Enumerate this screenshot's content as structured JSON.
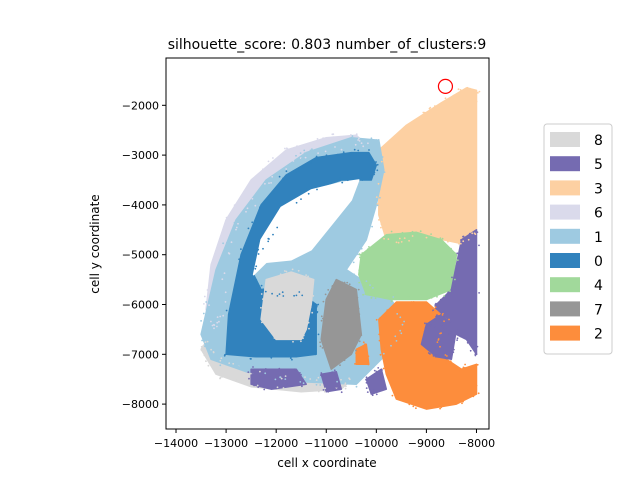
{
  "chart_data": {
    "type": "scatter",
    "title": "silhouette_score: 0.803 number_of_clusters:9",
    "xlabel": "cell x coordinate",
    "ylabel": "cell y coordinate",
    "xlim": [
      -14200,
      -7750
    ],
    "ylim": [
      -8500,
      -1050
    ],
    "x_ticks": [
      -14000,
      -13000,
      -12000,
      -11000,
      -10000,
      -9000,
      -8000
    ],
    "x_tick_labels": [
      "−14000",
      "−13000",
      "−12000",
      "−11000",
      "−10000",
      "−9000",
      "−8000"
    ],
    "y_ticks": [
      -8000,
      -7000,
      -6000,
      -5000,
      -4000,
      -3000,
      -2000
    ],
    "y_tick_labels": [
      "−8000",
      "−7000",
      "−6000",
      "−5000",
      "−4000",
      "−3000",
      "−2000"
    ],
    "grid": false,
    "legend_position": "right",
    "legend": [
      {
        "label": "8",
        "color": "#d9d9d9"
      },
      {
        "label": "5",
        "color": "#756bb1"
      },
      {
        "label": "3",
        "color": "#fdd0a2"
      },
      {
        "label": "6",
        "color": "#dadaeb"
      },
      {
        "label": "1",
        "color": "#9ecae1"
      },
      {
        "label": "0",
        "color": "#3182bd"
      },
      {
        "label": "4",
        "color": "#a1d99b"
      },
      {
        "label": "7",
        "color": "#969696"
      },
      {
        "label": "2",
        "color": "#fd8d3c"
      }
    ],
    "highlight_marker": {
      "x": -8620,
      "y": -1620,
      "color": "#ff0000"
    },
    "regions": [
      {
        "cluster": "8",
        "color": "#d9d9d9",
        "points": [
          [
            -13500,
            -6900
          ],
          [
            -13200,
            -7400
          ],
          [
            -12500,
            -7650
          ],
          [
            -11500,
            -7750
          ],
          [
            -10700,
            -7700
          ],
          [
            -10500,
            -7500
          ],
          [
            -11400,
            -7450
          ],
          [
            -12400,
            -7400
          ],
          [
            -13000,
            -7200
          ],
          [
            -13400,
            -6750
          ]
        ]
      },
      {
        "cluster": "6",
        "color": "#dadaeb",
        "points": [
          [
            -13400,
            -6100
          ],
          [
            -13300,
            -5200
          ],
          [
            -13000,
            -4300
          ],
          [
            -12500,
            -3500
          ],
          [
            -11800,
            -2900
          ],
          [
            -11000,
            -2650
          ],
          [
            -10400,
            -2600
          ],
          [
            -10200,
            -2800
          ],
          [
            -10900,
            -2850
          ],
          [
            -11700,
            -3150
          ],
          [
            -12300,
            -3700
          ],
          [
            -12800,
            -4500
          ],
          [
            -13000,
            -5300
          ],
          [
            -13100,
            -6200
          ],
          [
            -13200,
            -6500
          ]
        ]
      },
      {
        "cluster": "3",
        "color": "#fdd0a2",
        "points": [
          [
            -9950,
            -2900
          ],
          [
            -9400,
            -2400
          ],
          [
            -8700,
            -1950
          ],
          [
            -8200,
            -1650
          ],
          [
            -8000,
            -1700
          ],
          [
            -8000,
            -4500
          ],
          [
            -8200,
            -4800
          ],
          [
            -8900,
            -4650
          ],
          [
            -9500,
            -4700
          ],
          [
            -9800,
            -4700
          ],
          [
            -9950,
            -4200
          ]
        ]
      },
      {
        "cluster": "1",
        "color": "#9ecae1",
        "points": [
          [
            -13500,
            -6600
          ],
          [
            -13200,
            -5300
          ],
          [
            -12800,
            -4300
          ],
          [
            -12200,
            -3500
          ],
          [
            -11400,
            -2950
          ],
          [
            -10500,
            -2650
          ],
          [
            -9950,
            -2700
          ],
          [
            -9850,
            -3300
          ],
          [
            -10000,
            -4000
          ],
          [
            -10200,
            -4700
          ],
          [
            -10600,
            -5300
          ],
          [
            -9700,
            -5900
          ],
          [
            -9400,
            -6400
          ],
          [
            -9800,
            -7000
          ],
          [
            -10400,
            -7600
          ],
          [
            -11500,
            -7550
          ],
          [
            -12600,
            -7350
          ],
          [
            -13300,
            -7100
          ]
        ]
      },
      {
        "cluster": "0",
        "color": "#3182bd",
        "points": [
          [
            -13000,
            -7000
          ],
          [
            -12950,
            -6200
          ],
          [
            -12700,
            -5000
          ],
          [
            -12300,
            -4000
          ],
          [
            -11800,
            -3400
          ],
          [
            -11200,
            -3050
          ],
          [
            -10500,
            -2950
          ],
          [
            -10150,
            -2950
          ],
          [
            -10000,
            -3200
          ],
          [
            -10100,
            -3500
          ],
          [
            -10700,
            -3500
          ],
          [
            -11300,
            -3700
          ],
          [
            -11800,
            -4100
          ],
          [
            -12300,
            -4900
          ],
          [
            -12450,
            -5400
          ],
          [
            -12300,
            -5700
          ],
          [
            -11900,
            -5800
          ],
          [
            -11500,
            -5800
          ],
          [
            -11200,
            -6000
          ],
          [
            -11200,
            -7000
          ],
          [
            -11600,
            -7050
          ],
          [
            -12400,
            -7050
          ]
        ]
      },
      {
        "cluster": "8-white-void",
        "color": "#ffffff",
        "points": [
          [
            -12450,
            -5400
          ],
          [
            -12300,
            -4700
          ],
          [
            -11900,
            -4050
          ],
          [
            -11300,
            -3700
          ],
          [
            -10700,
            -3550
          ],
          [
            -10350,
            -3500
          ],
          [
            -10500,
            -3900
          ],
          [
            -10900,
            -4400
          ],
          [
            -11300,
            -4900
          ],
          [
            -11700,
            -5100
          ],
          [
            -12200,
            -5150
          ]
        ]
      },
      {
        "cluster": "8",
        "color": "#d9d9d9",
        "points": [
          [
            -12200,
            -5500
          ],
          [
            -11700,
            -5350
          ],
          [
            -11250,
            -5500
          ],
          [
            -11300,
            -6000
          ],
          [
            -11400,
            -6500
          ],
          [
            -11500,
            -6700
          ],
          [
            -12000,
            -6700
          ],
          [
            -12300,
            -6300
          ]
        ]
      },
      {
        "cluster": "7",
        "color": "#969696",
        "points": [
          [
            -11000,
            -5900
          ],
          [
            -10800,
            -5500
          ],
          [
            -10400,
            -5700
          ],
          [
            -10300,
            -6600
          ],
          [
            -10500,
            -7000
          ],
          [
            -10900,
            -7300
          ],
          [
            -11100,
            -6700
          ]
        ]
      },
      {
        "cluster": "4",
        "color": "#a1d99b",
        "points": [
          [
            -10300,
            -5000
          ],
          [
            -9800,
            -4600
          ],
          [
            -9200,
            -4550
          ],
          [
            -8700,
            -4700
          ],
          [
            -8400,
            -5000
          ],
          [
            -8500,
            -5700
          ],
          [
            -9000,
            -5900
          ],
          [
            -9700,
            -5900
          ],
          [
            -10200,
            -5800
          ],
          [
            -10350,
            -5400
          ]
        ]
      },
      {
        "cluster": "5",
        "color": "#756bb1",
        "points": [
          [
            -8500,
            -5700
          ],
          [
            -8300,
            -4700
          ],
          [
            -8000,
            -4500
          ],
          [
            -8000,
            -7000
          ],
          [
            -8200,
            -6700
          ],
          [
            -8600,
            -6500
          ],
          [
            -8900,
            -6400
          ],
          [
            -8800,
            -6000
          ]
        ]
      },
      {
        "cluster": "5",
        "color": "#756bb1",
        "points": [
          [
            -12500,
            -7300
          ],
          [
            -11600,
            -7300
          ],
          [
            -11400,
            -7600
          ],
          [
            -12100,
            -7700
          ],
          [
            -12500,
            -7600
          ]
        ]
      },
      {
        "cluster": "5",
        "color": "#756bb1",
        "points": [
          [
            -11100,
            -7400
          ],
          [
            -10800,
            -7350
          ],
          [
            -10700,
            -7700
          ],
          [
            -11000,
            -7750
          ]
        ]
      },
      {
        "cluster": "5",
        "color": "#756bb1",
        "points": [
          [
            -10200,
            -7500
          ],
          [
            -9900,
            -7300
          ],
          [
            -9800,
            -7700
          ],
          [
            -10100,
            -7800
          ]
        ]
      },
      {
        "cluster": "2",
        "color": "#fd8d3c",
        "points": [
          [
            -9950,
            -6300
          ],
          [
            -9600,
            -5950
          ],
          [
            -9000,
            -5950
          ],
          [
            -8600,
            -6300
          ],
          [
            -8800,
            -6700
          ],
          [
            -8600,
            -7100
          ],
          [
            -8300,
            -7300
          ],
          [
            -8000,
            -7200
          ],
          [
            -8000,
            -7800
          ],
          [
            -8400,
            -8000
          ],
          [
            -9000,
            -8100
          ],
          [
            -9600,
            -7900
          ],
          [
            -9800,
            -7400
          ],
          [
            -9900,
            -6900
          ]
        ]
      },
      {
        "cluster": "5",
        "color": "#756bb1",
        "points": [
          [
            -9000,
            -6400
          ],
          [
            -8700,
            -6200
          ],
          [
            -8400,
            -6500
          ],
          [
            -8500,
            -7100
          ],
          [
            -8800,
            -7050
          ],
          [
            -9100,
            -6800
          ]
        ]
      },
      {
        "cluster": "2",
        "color": "#fd8d3c",
        "points": [
          [
            -10400,
            -6900
          ],
          [
            -10200,
            -6800
          ],
          [
            -10150,
            -7200
          ],
          [
            -10400,
            -7200
          ]
        ]
      }
    ]
  }
}
